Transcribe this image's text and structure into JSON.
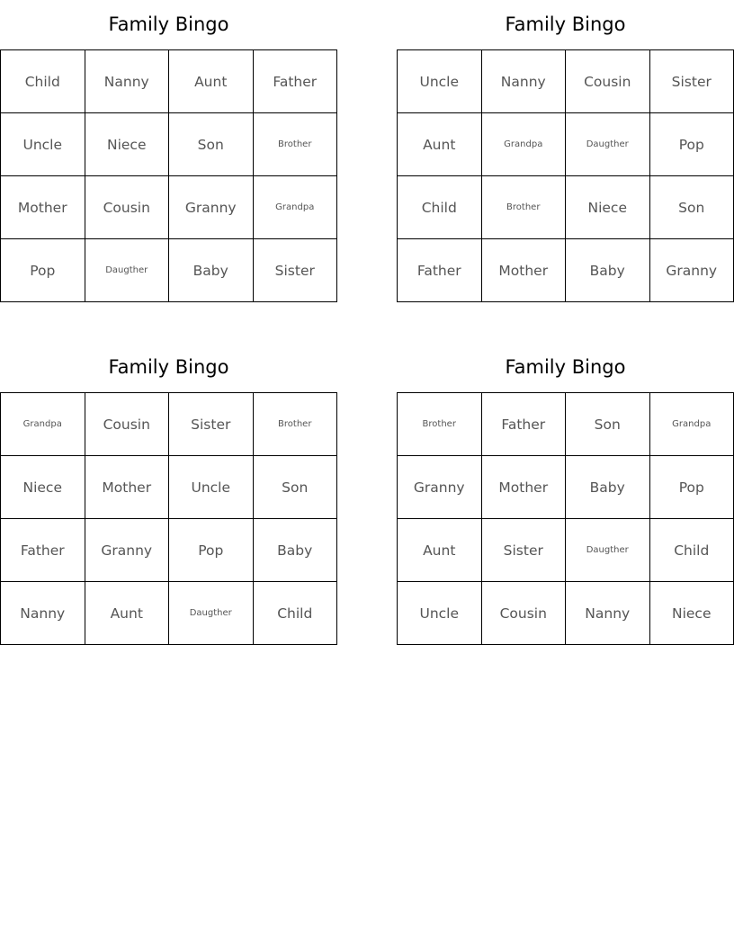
{
  "cards": [
    {
      "title": "Family Bingo",
      "rows": [
        [
          "Child",
          "Nanny",
          "Aunt",
          "Father"
        ],
        [
          "Uncle",
          "Niece",
          "Son",
          "Brother"
        ],
        [
          "Mother",
          "Cousin",
          "Granny",
          "Grandpa"
        ],
        [
          "Pop",
          "Daugther",
          "Baby",
          "Sister"
        ]
      ]
    },
    {
      "title": "Family Bingo",
      "rows": [
        [
          "Uncle",
          "Nanny",
          "Cousin",
          "Sister"
        ],
        [
          "Aunt",
          "Grandpa",
          "Daugther",
          "Pop"
        ],
        [
          "Child",
          "Brother",
          "Niece",
          "Son"
        ],
        [
          "Father",
          "Mother",
          "Baby",
          "Granny"
        ]
      ]
    },
    {
      "title": "Family Bingo",
      "rows": [
        [
          "Grandpa",
          "Cousin",
          "Sister",
          "Brother"
        ],
        [
          "Niece",
          "Mother",
          "Uncle",
          "Son"
        ],
        [
          "Father",
          "Granny",
          "Pop",
          "Baby"
        ],
        [
          "Nanny",
          "Aunt",
          "Daugther",
          "Child"
        ]
      ]
    },
    {
      "title": "Family Bingo",
      "rows": [
        [
          "Brother",
          "Father",
          "Son",
          "Grandpa"
        ],
        [
          "Granny",
          "Mother",
          "Baby",
          "Pop"
        ],
        [
          "Aunt",
          "Sister",
          "Daugther",
          "Child"
        ],
        [
          "Uncle",
          "Cousin",
          "Nanny",
          "Niece"
        ]
      ]
    }
  ]
}
